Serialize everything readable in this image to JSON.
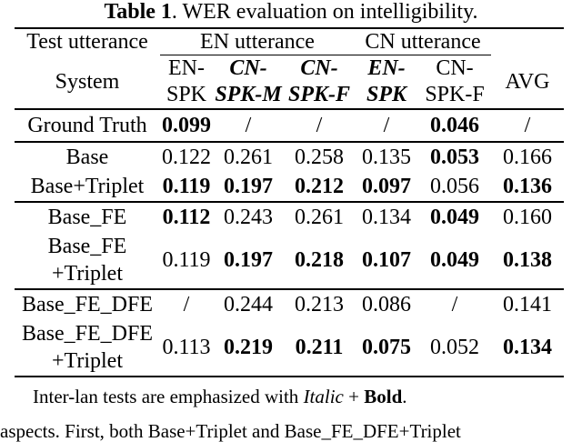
{
  "caption": {
    "label": "Table 1",
    "text": ". WER evaluation on intelligibility."
  },
  "header": {
    "test_utterance": "Test utterance",
    "system": "System",
    "en_utterance": "EN utterance",
    "cn_utterance": "CN utterance",
    "avg": "AVG",
    "col1_a": "EN-",
    "col1_b": "SPK",
    "col2_a": "CN-",
    "col2_b": "SPK-M",
    "col3_a": "CN-",
    "col3_b": "SPK-F",
    "col4_a": "EN-",
    "col4_b": "SPK",
    "col5_a": "CN-",
    "col5_b": "SPK-F"
  },
  "rows": [
    {
      "system": "Ground Truth",
      "c1": "0.099",
      "c2": "/",
      "c3": "/",
      "c4": "/",
      "c5": "0.046",
      "avg": "/"
    },
    {
      "system": "Base",
      "c1": "0.122",
      "c2": "0.261",
      "c3": "0.258",
      "c4": "0.135",
      "c5": "0.053",
      "avg": "0.166"
    },
    {
      "system": "Base+Triplet",
      "c1": "0.119",
      "c2": "0.197",
      "c3": "0.212",
      "c4": "0.097",
      "c5": "0.056",
      "avg": "0.136"
    },
    {
      "system": "Base_FE",
      "c1": "0.112",
      "c2": "0.243",
      "c3": "0.261",
      "c4": "0.134",
      "c5": "0.049",
      "avg": "0.160"
    },
    {
      "system_a": "Base_FE",
      "system_b": "+Triplet",
      "c1": "0.119",
      "c2": "0.197",
      "c3": "0.218",
      "c4": "0.107",
      "c5": "0.049",
      "avg": "0.138"
    },
    {
      "system": "Base_FE_DFE",
      "c1": "/",
      "c2": "0.244",
      "c3": "0.213",
      "c4": "0.086",
      "c5": "/",
      "avg": "0.141"
    },
    {
      "system_a": "Base_FE_DFE",
      "system_b": "+Triplet",
      "c1": "0.113",
      "c2": "0.219",
      "c3": "0.211",
      "c4": "0.075",
      "c5": "0.052",
      "avg": "0.134"
    }
  ],
  "note": {
    "prefix": "Inter-lan tests are emphasized with ",
    "italic": "Italic",
    "plus": " + ",
    "bold": "Bold",
    "suffix": "."
  },
  "cut_text": "aspects. First, both Base+Triplet and Base_FE_DFE+Triplet"
}
